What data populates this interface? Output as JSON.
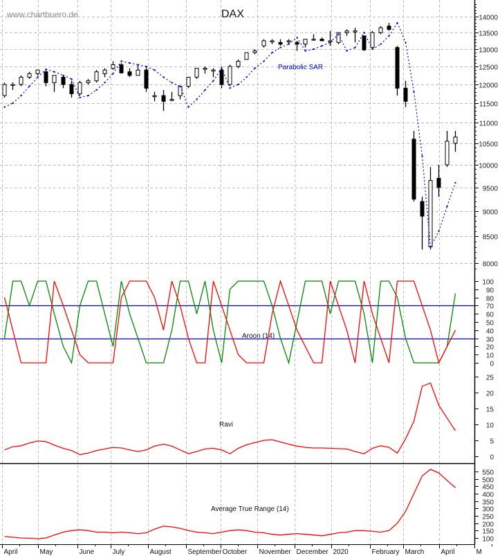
{
  "watermark": "www.chartbuero.de",
  "colors": {
    "candle": "#000000",
    "sar": "#0000dd",
    "aroon_up": "#008800",
    "aroon_down": "#ff0000",
    "aroon_levels": "#0000cc",
    "ravi": "#ff0000",
    "atr": "#ff0000",
    "grid": "#bdbdbd"
  },
  "chart_data": [
    {
      "type": "candlestick",
      "title": "DAX",
      "scale": "log",
      "ylim": [
        7800,
        14600
      ],
      "grid": true,
      "y_ticks": [
        "8000",
        "8500",
        "9000",
        "9500",
        "10000",
        "10500",
        "11000",
        "11500",
        "12000",
        "12500",
        "13000",
        "13500",
        "14000"
      ],
      "x_ticks": [
        {
          "label": "April",
          "date": "2019-04-01"
        },
        {
          "label": "May",
          "date": "2019-05-01"
        },
        {
          "label": "June",
          "date": "2019-06-03"
        },
        {
          "label": "July",
          "date": "2019-07-01"
        },
        {
          "label": "August",
          "date": "2019-08-01"
        },
        {
          "label": "September",
          "date": "2019-09-02"
        },
        {
          "label": "October",
          "date": "2019-10-01"
        },
        {
          "label": "November",
          "date": "2019-11-01"
        },
        {
          "label": "December",
          "date": "2019-12-02"
        },
        {
          "label": "2020",
          "date": "2020-01-02"
        },
        {
          "label": "February",
          "date": "2020-02-03"
        },
        {
          "label": "March",
          "date": "2020-03-02"
        },
        {
          "label": "April",
          "date": "2020-04-01"
        },
        {
          "label": "M",
          "date": "2020-05-01"
        }
      ],
      "period": "weekly approximation",
      "dates": [
        "2019-04-01",
        "2019-04-08",
        "2019-04-15",
        "2019-04-22",
        "2019-04-29",
        "2019-05-06",
        "2019-05-13",
        "2019-05-20",
        "2019-05-27",
        "2019-06-03",
        "2019-06-10",
        "2019-06-17",
        "2019-06-24",
        "2019-07-01",
        "2019-07-08",
        "2019-07-15",
        "2019-07-22",
        "2019-07-29",
        "2019-08-05",
        "2019-08-12",
        "2019-08-19",
        "2019-08-26",
        "2019-09-02",
        "2019-09-09",
        "2019-09-16",
        "2019-09-23",
        "2019-09-30",
        "2019-10-07",
        "2019-10-14",
        "2019-10-21",
        "2019-10-28",
        "2019-11-04",
        "2019-11-11",
        "2019-11-18",
        "2019-11-25",
        "2019-12-02",
        "2019-12-09",
        "2019-12-16",
        "2019-12-23",
        "2019-12-30",
        "2020-01-06",
        "2020-01-13",
        "2020-01-20",
        "2020-01-27",
        "2020-02-03",
        "2020-02-10",
        "2020-02-17",
        "2020-02-24",
        "2020-03-02",
        "2020-03-09",
        "2020-03-16",
        "2020-03-23",
        "2020-03-30",
        "2020-04-06",
        "2020-04-13"
      ],
      "ohlc": [
        [
          11700,
          12050,
          11650,
          12000
        ],
        [
          12000,
          12050,
          11850,
          12000
        ],
        [
          12000,
          12250,
          11950,
          12200
        ],
        [
          12200,
          12350,
          12150,
          12300
        ],
        [
          12300,
          12400,
          12250,
          12400
        ],
        [
          12350,
          12400,
          11950,
          12050
        ],
        [
          12050,
          12250,
          11800,
          12250
        ],
        [
          12200,
          12250,
          11900,
          12000
        ],
        [
          12000,
          12100,
          11650,
          11750
        ],
        [
          11750,
          12100,
          11700,
          12050
        ],
        [
          12050,
          12150,
          12000,
          12100
        ],
        [
          12100,
          12400,
          12050,
          12350
        ],
        [
          12300,
          12450,
          12200,
          12400
        ],
        [
          12450,
          12650,
          12400,
          12550
        ],
        [
          12550,
          12600,
          12300,
          12320
        ],
        [
          12350,
          12450,
          12200,
          12250
        ],
        [
          12250,
          12550,
          12250,
          12400
        ],
        [
          12400,
          12500,
          11800,
          11900
        ],
        [
          11700,
          11800,
          11550,
          11700
        ],
        [
          11700,
          11850,
          11300,
          11550
        ],
        [
          11600,
          11800,
          11550,
          11600
        ],
        [
          11700,
          11950,
          11600,
          11950
        ],
        [
          11950,
          12200,
          11900,
          12200
        ],
        [
          12200,
          12450,
          12150,
          12450
        ],
        [
          12450,
          12500,
          12300,
          12450
        ],
        [
          12400,
          12450,
          12200,
          12400
        ],
        [
          12400,
          12500,
          11900,
          12000
        ],
        [
          12000,
          12550,
          11950,
          12500
        ],
        [
          12500,
          12700,
          12450,
          12650
        ],
        [
          12700,
          12900,
          12700,
          12900
        ],
        [
          12900,
          13000,
          12850,
          12950
        ],
        [
          13100,
          13300,
          13050,
          13250
        ],
        [
          13250,
          13300,
          13150,
          13250
        ],
        [
          13200,
          13300,
          13100,
          13150
        ],
        [
          13250,
          13300,
          13150,
          13250
        ],
        [
          13200,
          13250,
          12950,
          13150
        ],
        [
          13150,
          13300,
          13050,
          13300
        ],
        [
          13300,
          13450,
          13250,
          13300
        ],
        [
          13300,
          13350,
          13250,
          13250
        ],
        [
          13250,
          13550,
          13100,
          13250
        ],
        [
          13200,
          13500,
          13150,
          13500
        ],
        [
          13500,
          13600,
          13400,
          13550
        ],
        [
          13550,
          13650,
          13200,
          13550
        ],
        [
          13400,
          13400,
          12950,
          12980
        ],
        [
          13050,
          13550,
          13000,
          13500
        ],
        [
          13500,
          13700,
          13450,
          13650
        ],
        [
          13700,
          13800,
          13550,
          13600
        ],
        [
          13050,
          13100,
          11700,
          11900
        ],
        [
          11900,
          12100,
          11400,
          11550
        ],
        [
          10600,
          10800,
          9200,
          9250
        ],
        [
          9200,
          9300,
          8250,
          8900
        ],
        [
          8300,
          9950,
          8250,
          9650
        ],
        [
          9700,
          10000,
          9300,
          9500
        ],
        [
          10000,
          10800,
          9950,
          10550
        ],
        [
          10500,
          10800,
          10300,
          10650
        ]
      ],
      "overlay": {
        "name": "Parabolic SAR",
        "values": [
          11400,
          11500,
          11700,
          11950,
          12200,
          12420,
          12350,
          12250,
          12150,
          11650,
          11700,
          11850,
          12050,
          12300,
          12650,
          12600,
          12550,
          12500,
          12400,
          12200,
          12050,
          11950,
          11400,
          11600,
          11850,
          12100,
          12450,
          11900,
          12000,
          12200,
          12450,
          12650,
          12900,
          13050,
          13150,
          13350,
          12950,
          13000,
          13100,
          13200,
          13450,
          12950,
          13050,
          13500,
          13000,
          13150,
          13400,
          13800,
          13200,
          11800,
          10200,
          8300,
          8600,
          9100,
          9600
        ]
      }
    },
    {
      "type": "line",
      "title": "Aroon (14)",
      "ylim": [
        0,
        100
      ],
      "y_ticks": [
        "0",
        "10",
        "20",
        "30",
        "40",
        "50",
        "60",
        "70",
        "80",
        "90",
        "100"
      ],
      "levels": [
        30,
        70
      ],
      "series": [
        {
          "values": [
            30,
            100,
            100,
            70,
            100,
            100,
            60,
            20,
            0,
            70,
            100,
            100,
            60,
            20,
            100,
            60,
            30,
            0,
            0,
            0,
            40,
            100,
            100,
            60,
            100,
            40,
            0,
            90,
            100,
            100,
            100,
            100,
            70,
            30,
            0,
            50,
            100,
            100,
            100,
            60,
            100,
            100,
            100,
            60,
            0,
            100,
            100,
            80,
            30,
            0,
            0,
            0,
            0,
            20,
            85
          ]
        },
        {
          "values": [
            80,
            40,
            0,
            0,
            0,
            0,
            100,
            70,
            40,
            10,
            0,
            0,
            0,
            0,
            80,
            100,
            100,
            100,
            80,
            40,
            100,
            70,
            30,
            0,
            0,
            100,
            70,
            40,
            10,
            0,
            0,
            0,
            60,
            100,
            70,
            40,
            20,
            0,
            0,
            100,
            70,
            40,
            0,
            100,
            60,
            30,
            0,
            100,
            100,
            100,
            70,
            40,
            0,
            20,
            40
          ]
        }
      ]
    },
    {
      "type": "line",
      "title": "Ravi",
      "ylim": [
        -2,
        26
      ],
      "y_ticks": [
        "0",
        "5",
        "10",
        "15",
        "20",
        "25"
      ],
      "values": [
        2,
        3,
        3.3,
        4.2,
        4.8,
        4.6,
        3.5,
        2.5,
        1.8,
        0.5,
        1,
        1.8,
        2.3,
        2.8,
        2.6,
        2,
        1.5,
        2,
        3.2,
        3.8,
        3.2,
        2,
        0.8,
        1.5,
        2.3,
        2.5,
        2,
        0.8,
        2.5,
        3.6,
        4.3,
        5,
        5.2,
        4.5,
        3.8,
        3.2,
        2.8,
        2.6,
        2.6,
        2.5,
        2.4,
        2.3,
        1.5,
        0.8,
        2.5,
        3.3,
        2.8,
        1,
        5.5,
        11,
        22,
        23,
        16,
        12,
        8
      ]
    },
    {
      "type": "line",
      "title": "Average True Range (14)",
      "ylim": [
        60,
        600
      ],
      "y_ticks": [
        "100",
        "150",
        "200",
        "250",
        "300",
        "350",
        "400",
        "450",
        "500",
        "550"
      ],
      "values": [
        110,
        105,
        100,
        98,
        95,
        100,
        120,
        140,
        150,
        155,
        150,
        140,
        140,
        135,
        140,
        135,
        130,
        135,
        160,
        180,
        175,
        165,
        150,
        140,
        135,
        130,
        140,
        150,
        155,
        150,
        140,
        135,
        125,
        120,
        125,
        130,
        125,
        120,
        115,
        125,
        135,
        140,
        150,
        150,
        145,
        140,
        150,
        200,
        280,
        400,
        520,
        565,
        540,
        490,
        440
      ]
    }
  ]
}
